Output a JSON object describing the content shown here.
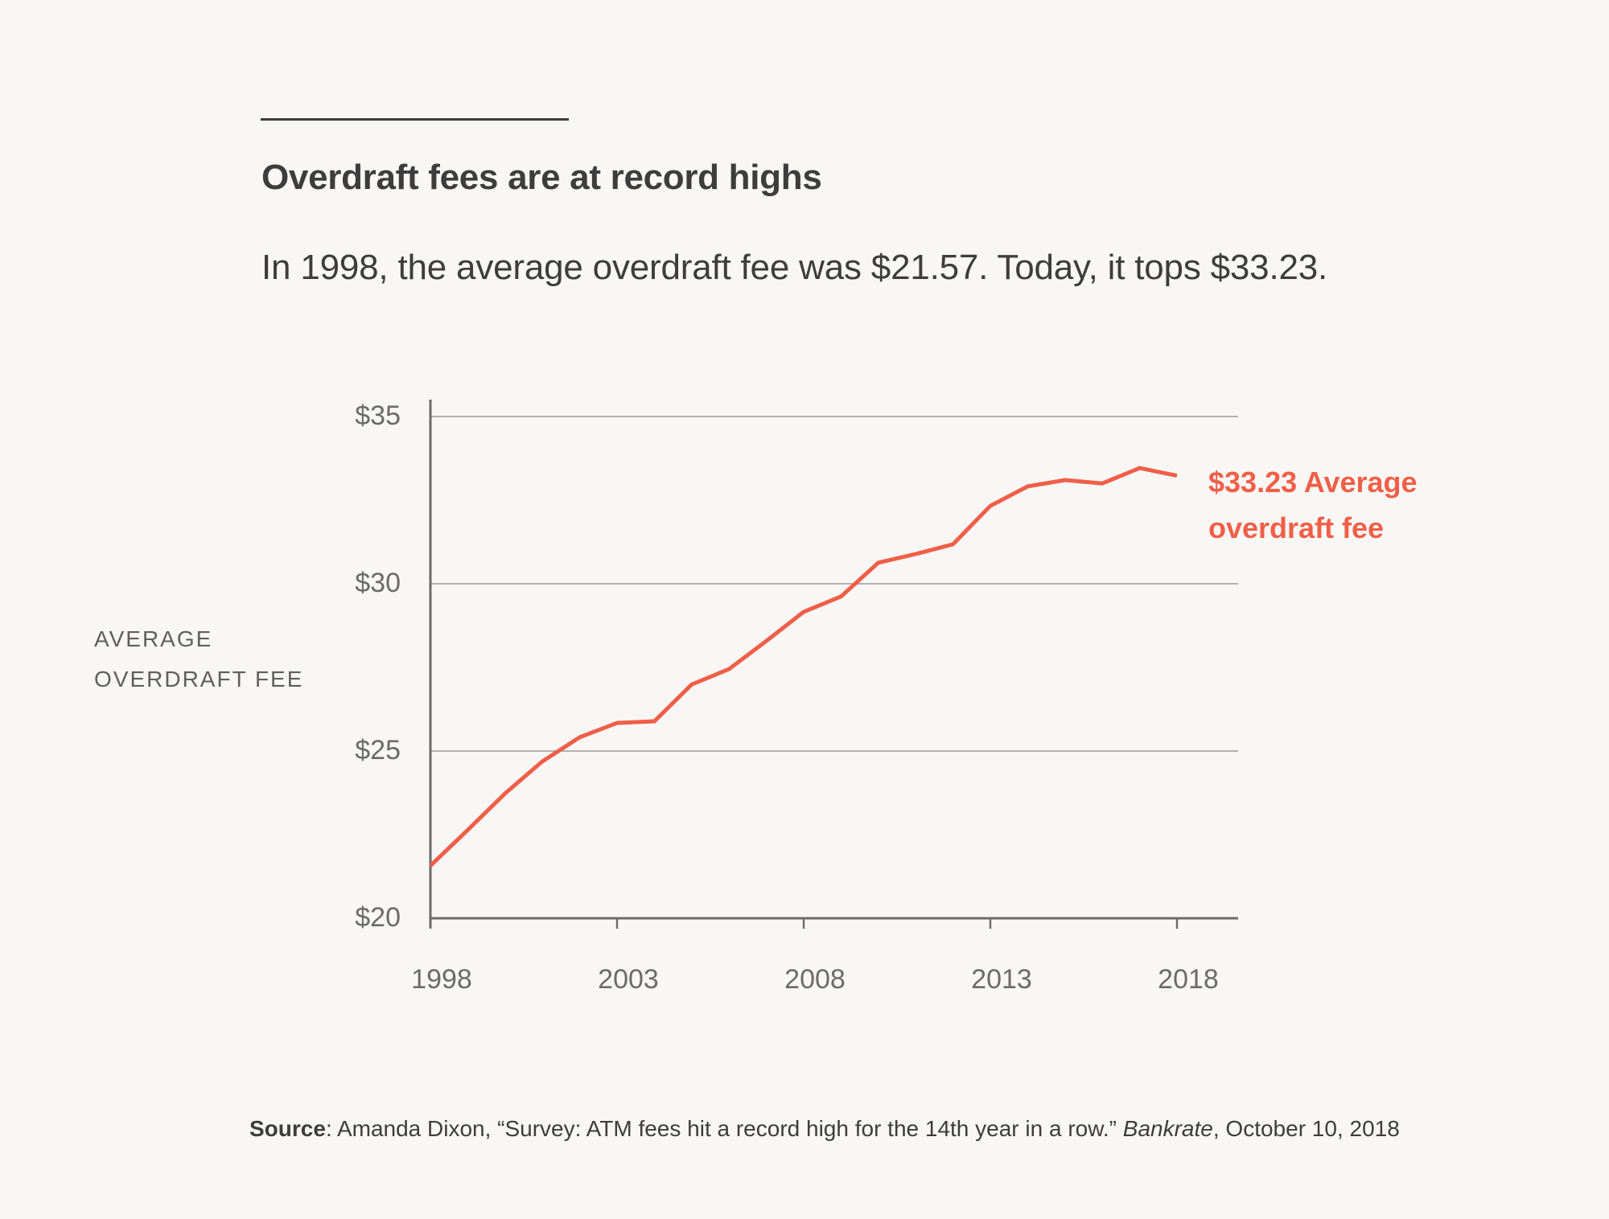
{
  "header": {
    "title": "Overdraft fees are at record highs",
    "subtitle": "In 1998, the average overdraft fee was $21.57. Today, it tops $33.23."
  },
  "colors": {
    "line": "#ef5f48",
    "annotation": "#ef5f48",
    "text": "#3d3d3d",
    "axis": "#6b6b6b",
    "grid": "#9c9c9c",
    "background": "#f8f7f5"
  },
  "chart_data": {
    "type": "line",
    "title": "Overdraft fees are at record highs",
    "subtitle": "In 1998, the average overdraft fee was $21.57. Today, it tops $33.23.",
    "xlabel": "",
    "ylabel": "AVERAGE OVERDRAFT FEE",
    "ylabel_lines": [
      "AVERAGE",
      "OVERDRAFT FEE"
    ],
    "x": [
      1998,
      1999,
      2000,
      2001,
      2002,
      2003,
      2004,
      2005,
      2006,
      2007,
      2008,
      2009,
      2010,
      2011,
      2012,
      2013,
      2014,
      2015,
      2016,
      2017,
      2018
    ],
    "series": [
      {
        "name": "Average overdraft fee",
        "values": [
          21.57,
          22.64,
          23.73,
          24.69,
          25.41,
          25.84,
          25.89,
          26.99,
          27.45,
          28.29,
          29.16,
          29.62,
          30.63,
          30.89,
          31.18,
          32.33,
          32.91,
          33.1,
          33.0,
          33.46,
          33.23
        ]
      }
    ],
    "xlim": [
      1998,
      2019.7
    ],
    "ylim": [
      20,
      35
    ],
    "x_ticks": [
      1998,
      2003,
      2008,
      2013,
      2018
    ],
    "x_tick_labels": [
      "1998",
      "2003",
      "2008",
      "2013",
      "2018"
    ],
    "y_ticks": [
      20,
      25,
      30,
      35
    ],
    "y_tick_labels": [
      "$20",
      "$25",
      "$30",
      "$35"
    ],
    "grid": "horizontal",
    "legend": "none",
    "annotation": {
      "text_line1": "$33.23 Average",
      "text_line2": "overdraft fee",
      "target": {
        "x": 2018,
        "y": 33.23
      },
      "placement": "right-of-line-end"
    }
  },
  "source": {
    "label": "Source",
    "text_before": ": Amanda Dixon, “Survey: ATM fees hit a record high for the 14th year in a row.” ",
    "publication": "Bankrate",
    "text_after": ", October 10, 2018"
  }
}
